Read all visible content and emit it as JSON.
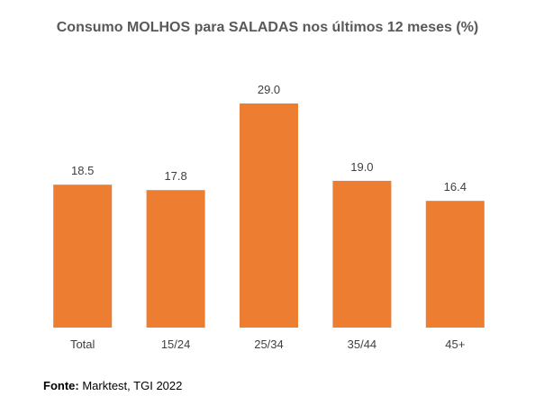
{
  "chart_data": {
    "type": "bar",
    "title": "Consumo MOLHOS para SALADAS nos últimos 12 meses (%)",
    "categories": [
      "Total",
      "15/24",
      "25/34",
      "35/44",
      "45+"
    ],
    "values": [
      18.5,
      17.8,
      29.0,
      19.0,
      16.4
    ],
    "value_labels": [
      "18.5",
      "17.8",
      "29.0",
      "19.0",
      "16.4"
    ],
    "xlabel": "",
    "ylabel": "",
    "ylim": [
      0,
      29
    ],
    "grid": false,
    "legend": "none",
    "bar_color": "#ED7D31"
  },
  "source": {
    "label": "Fonte:",
    "text": " Marktest, TGI 2022"
  }
}
